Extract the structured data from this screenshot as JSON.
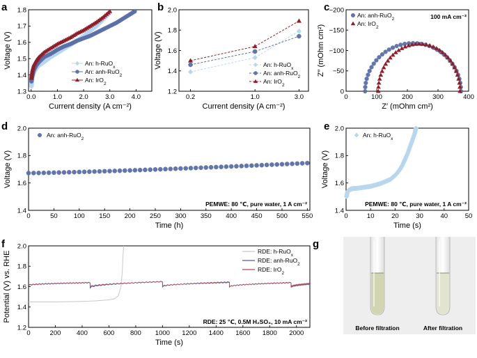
{
  "colors": {
    "h_ruo": "#b8d7ee",
    "anh_ruo": "#5b6fa8",
    "iro2": "#8c1f2a",
    "rde_h": "#c8c8c8",
    "rde_anh": "#4a5ea8",
    "rde_iro2": "#b24a55"
  },
  "chart_data": [
    {
      "panel": "a",
      "type": "line",
      "xlabel": "Current density (A cm⁻²)",
      "ylabel": "Voltage (V)",
      "xlim": [
        -0.1,
        4.6
      ],
      "ylim": [
        1.3,
        1.8
      ],
      "xticks": [
        "0.0",
        "1.0",
        "2.0",
        "3.0",
        "4.0"
      ],
      "xtick_values": [
        0,
        1,
        2,
        3,
        4
      ],
      "yticks": [
        "1.3",
        "1.4",
        "1.5",
        "1.6",
        "1.7",
        "1.8"
      ],
      "ytick_values": [
        1.3,
        1.4,
        1.5,
        1.6,
        1.7,
        1.8
      ],
      "legend": [
        "An: h-RuO",
        "An: anh-RuO",
        "An: IrO"
      ],
      "legend_subs": [
        "x",
        "2",
        "2"
      ],
      "series": [
        {
          "name": "An: h-RuOx",
          "x": [
            0.01,
            0.02,
            0.05,
            0.1,
            0.2,
            0.3,
            0.5,
            0.75,
            1.0,
            1.25,
            1.5,
            1.75,
            2.0,
            2.25,
            2.5,
            2.75,
            3.0
          ],
          "y": [
            1.33,
            1.36,
            1.39,
            1.415,
            1.44,
            1.458,
            1.48,
            1.51,
            1.535,
            1.56,
            1.585,
            1.61,
            1.64,
            1.67,
            1.7,
            1.74,
            1.78
          ]
        },
        {
          "name": "An: anh-RuO2",
          "x": [
            0.01,
            0.02,
            0.05,
            0.1,
            0.2,
            0.3,
            0.5,
            0.75,
            1.0,
            1.25,
            1.5,
            1.75,
            2.0,
            2.25,
            2.5,
            2.75,
            3.0,
            3.25,
            3.5,
            3.75,
            3.95
          ],
          "y": [
            1.36,
            1.38,
            1.4,
            1.43,
            1.46,
            1.48,
            1.51,
            1.53,
            1.555,
            1.575,
            1.59,
            1.61,
            1.625,
            1.64,
            1.66,
            1.68,
            1.7,
            1.72,
            1.745,
            1.77,
            1.79
          ]
        },
        {
          "name": "An: IrO2",
          "x": [
            0.01,
            0.02,
            0.05,
            0.1,
            0.2,
            0.3,
            0.5,
            0.75,
            1.0,
            1.25,
            1.5,
            1.75,
            2.0,
            2.25,
            2.5,
            2.75,
            3.0
          ],
          "y": [
            1.38,
            1.4,
            1.43,
            1.46,
            1.49,
            1.51,
            1.54,
            1.565,
            1.59,
            1.61,
            1.63,
            1.655,
            1.675,
            1.7,
            1.725,
            1.755,
            1.79
          ]
        }
      ]
    },
    {
      "panel": "b",
      "type": "line",
      "xlabel": "Current density (A cm⁻²)",
      "ylabel": "Voltage (V)",
      "xscale": "log",
      "xlim": [
        0.15,
        3.8
      ],
      "ylim": [
        1.2,
        2.0
      ],
      "xticks": [
        "0.2",
        "1.0",
        "3.0"
      ],
      "xtick_values": [
        0.2,
        1.0,
        3.0
      ],
      "yticks": [
        "1.2",
        "1.4",
        "1.6",
        "1.8",
        "2.0"
      ],
      "ytick_values": [
        1.2,
        1.4,
        1.6,
        1.8,
        2.0
      ],
      "legend": [
        "An: h-RuO",
        "An: anh-RuO",
        "An: IrO"
      ],
      "legend_subs": [
        "x",
        "2",
        "2"
      ],
      "series": [
        {
          "name": "An: h-RuOx",
          "x": [
            0.2,
            1.0,
            3.0
          ],
          "y": [
            1.39,
            1.53,
            1.79
          ]
        },
        {
          "name": "An: anh-RuO2",
          "x": [
            0.2,
            1.0,
            3.0
          ],
          "y": [
            1.46,
            1.59,
            1.74
          ]
        },
        {
          "name": "An: IrO2",
          "x": [
            0.2,
            1.0,
            3.0
          ],
          "y": [
            1.5,
            1.64,
            1.89
          ]
        }
      ]
    },
    {
      "panel": "c",
      "type": "scatter",
      "xlabel": "Z′ (mOhm cm²)",
      "ylabel": "Z″ (mOhm cm²)",
      "xlim": [
        0,
        400
      ],
      "ylim": [
        0,
        -200
      ],
      "xticks": [
        "0",
        "100",
        "200",
        "300",
        "400"
      ],
      "xtick_values": [
        0,
        100,
        200,
        300,
        400
      ],
      "yticks": [
        "0",
        "−50",
        "−100",
        "−150",
        "−200"
      ],
      "ytick_values": [
        0,
        -50,
        -100,
        -150,
        -200
      ],
      "annotation": "100 mA cm⁻²",
      "legend": [
        "An: anh-RuO",
        "An: IrO"
      ],
      "legend_subs": [
        "2",
        "2"
      ],
      "series": [
        {
          "name": "An: anh-RuO2",
          "arc_start": 62,
          "arc_end": 375,
          "arc_peak": -118
        },
        {
          "name": "An: IrO2",
          "arc_start": 105,
          "arc_end": 372,
          "arc_peak": -116
        }
      ]
    },
    {
      "panel": "d",
      "type": "scatter",
      "xlabel": "Time (h)",
      "ylabel": "Voltage (V)",
      "xlim": [
        0,
        555
      ],
      "ylim": [
        1.4,
        2.0
      ],
      "xticks": [
        "0",
        "50",
        "100",
        "150",
        "200",
        "250",
        "300",
        "350",
        "400",
        "450",
        "500",
        "550"
      ],
      "xtick_values": [
        0,
        50,
        100,
        150,
        200,
        250,
        300,
        350,
        400,
        450,
        500,
        550
      ],
      "yticks": [
        "1.4",
        "1.6",
        "1.8",
        "2.0"
      ],
      "ytick_values": [
        1.4,
        1.6,
        1.8,
        2.0
      ],
      "annotation": "PEMWE: 80 ℃, pure water, 1 A cm⁻²",
      "legend": [
        "An: anh-RuO"
      ],
      "legend_subs": [
        "2"
      ],
      "series": [
        {
          "name": "An: anh-RuO2",
          "x_start": 0,
          "x_end": 550,
          "x_step": 10,
          "y_start": 1.672,
          "y_end": 1.745
        }
      ]
    },
    {
      "panel": "e",
      "type": "scatter",
      "xlabel": "Time (s)",
      "ylabel": "Voltage (V)",
      "xlim": [
        0,
        50
      ],
      "ylim": [
        1.4,
        2.0
      ],
      "xticks": [
        "0",
        "10",
        "20",
        "30",
        "40",
        "50"
      ],
      "xtick_values": [
        0,
        10,
        20,
        30,
        40,
        50
      ],
      "yticks": [
        "1.4",
        "1.6",
        "1.8",
        "2.0"
      ],
      "ytick_values": [
        1.4,
        1.6,
        1.8,
        2.0
      ],
      "annotation": "PEMWE: 80 ℃, pure water, 1 A cm⁻²",
      "legend": [
        "An: h-RuO"
      ],
      "legend_subs": [
        "x"
      ],
      "series": [
        {
          "name": "An: h-RuOx",
          "x": [
            0.2,
            0.5,
            1,
            1.5,
            2,
            3,
            4,
            6,
            8,
            10,
            12,
            14,
            16,
            18,
            19,
            20,
            21,
            22,
            23,
            24,
            25,
            26,
            27,
            28,
            28.5
          ],
          "y": [
            1.5,
            1.53,
            1.545,
            1.55,
            1.555,
            1.56,
            1.56,
            1.565,
            1.57,
            1.575,
            1.585,
            1.595,
            1.61,
            1.625,
            1.64,
            1.655,
            1.675,
            1.7,
            1.73,
            1.77,
            1.81,
            1.86,
            1.91,
            1.96,
            2.0
          ]
        }
      ]
    },
    {
      "panel": "f",
      "type": "line",
      "xlabel": "Time (s)",
      "ylabel": "Potential (V) vs. RHE",
      "xlim": [
        0,
        2100
      ],
      "ylim": [
        1.2,
        2.0
      ],
      "xticks": [
        "0",
        "200",
        "400",
        "600",
        "800",
        "1000",
        "1200",
        "1400",
        "1600",
        "1800",
        "2000"
      ],
      "xtick_values": [
        0,
        200,
        400,
        600,
        800,
        1000,
        1200,
        1400,
        1600,
        1800,
        2000
      ],
      "yticks": [
        "1.2",
        "1.4",
        "1.6",
        "1.8",
        "2.0"
      ],
      "ytick_values": [
        1.2,
        1.4,
        1.6,
        1.8,
        2.0
      ],
      "annotation": "RDE: 25 ℃, 0.5M H₂SO₄, 10 mA cm⁻²",
      "legend": [
        "RDE: h-RuO",
        "RDE: anh-RuO",
        "RDE: IrO"
      ],
      "legend_subs": [
        "x",
        "2",
        "2"
      ],
      "series": [
        {
          "name": "RDE: h-RuOx",
          "x": [
            0,
            100,
            200,
            300,
            400,
            500,
            600,
            640,
            670,
            690,
            700,
            705,
            710
          ],
          "y": [
            1.45,
            1.45,
            1.45,
            1.452,
            1.455,
            1.46,
            1.47,
            1.48,
            1.51,
            1.6,
            1.75,
            1.9,
            2.0
          ]
        },
        {
          "name": "RDE: anh-RuO2",
          "segments": [
            [
              0,
              460,
              1.615,
              1.64
            ],
            [
              460,
              1000,
              1.59,
              1.65
            ],
            [
              1000,
              1500,
              1.6,
              1.645
            ],
            [
              1500,
              1960,
              1.6,
              1.64
            ],
            [
              1960,
              2100,
              1.595,
              1.625
            ]
          ]
        },
        {
          "name": "RDE: IrO2",
          "segments": [
            [
              0,
              460,
              1.612,
              1.638
            ],
            [
              460,
              1000,
              1.6,
              1.648
            ],
            [
              1000,
              1500,
              1.605,
              1.64
            ],
            [
              1500,
              1960,
              1.6,
              1.638
            ],
            [
              1960,
              2100,
              1.6,
              1.63
            ]
          ]
        }
      ]
    }
  ],
  "panel_g": {
    "letter": "g",
    "caption_left": "Before filtration",
    "caption_right": "After filtration"
  },
  "letters": [
    "a",
    "b",
    "c",
    "d",
    "e",
    "f"
  ]
}
